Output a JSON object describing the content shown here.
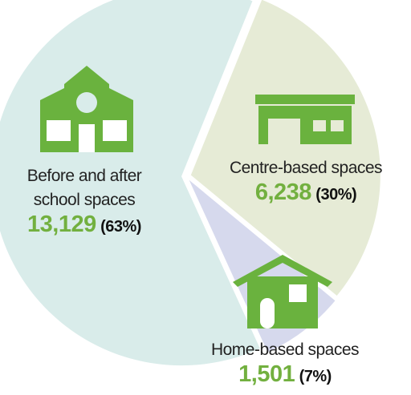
{
  "chart_data": {
    "type": "pie",
    "categories": [
      "Before and after school spaces",
      "Centre-based spaces",
      "Home-based spaces"
    ],
    "values": [
      13129,
      6238,
      1501
    ],
    "value_labels": [
      "13,129",
      "6,238",
      "1,501"
    ],
    "share_labels": [
      "(63%)",
      "(30%)",
      "(7%)"
    ],
    "colors": [
      "#d9ecea",
      "#e6ebd6",
      "#d6d9ed"
    ]
  }
}
